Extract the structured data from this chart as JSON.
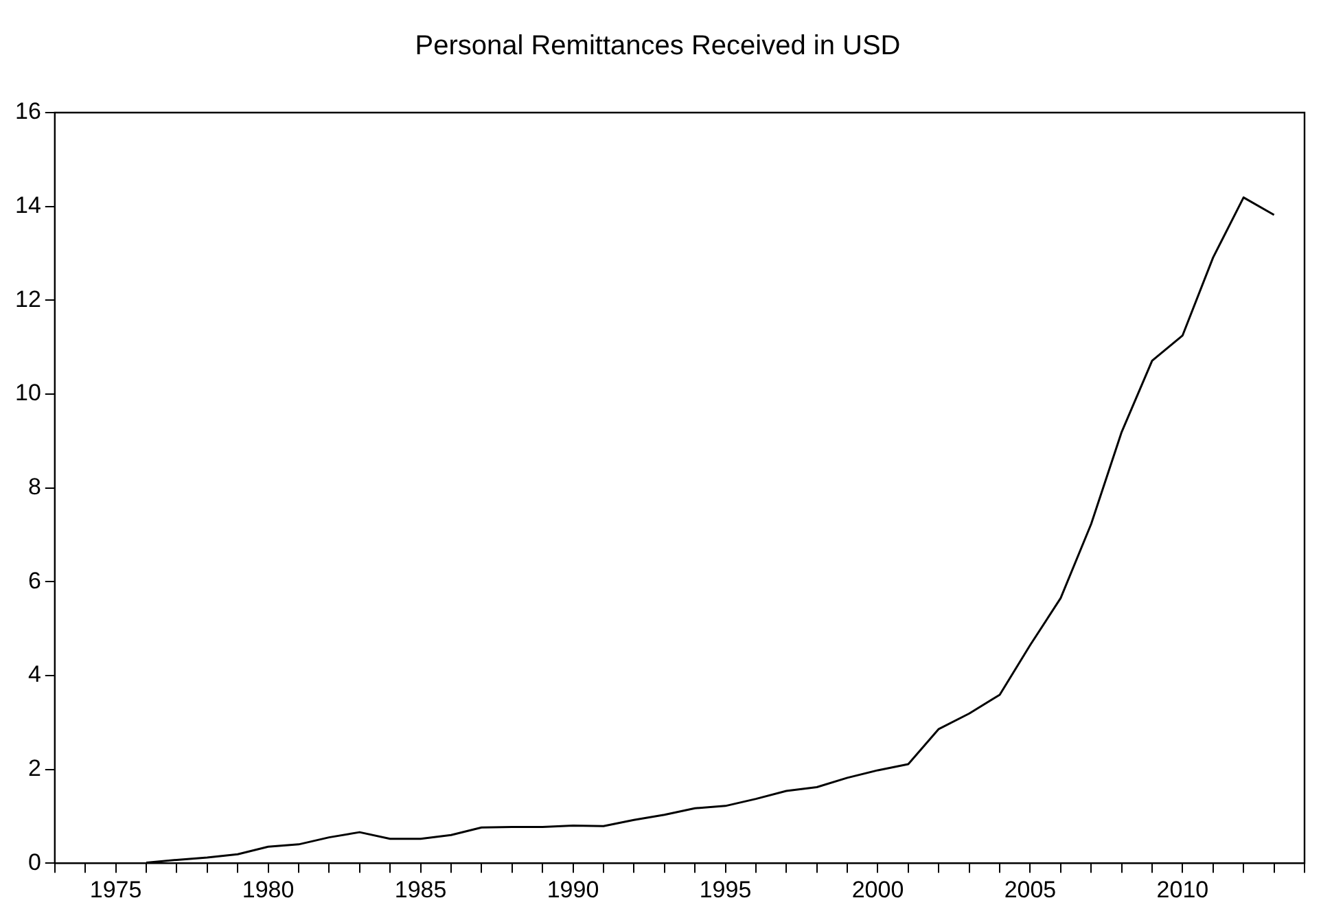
{
  "chart_data": {
    "type": "line",
    "title": "Personal Remittances Received in USD",
    "x": [
      1976,
      1977,
      1978,
      1979,
      1980,
      1981,
      1982,
      1983,
      1984,
      1985,
      1986,
      1987,
      1988,
      1989,
      1990,
      1991,
      1992,
      1993,
      1994,
      1995,
      1996,
      1997,
      1998,
      1999,
      2000,
      2001,
      2002,
      2003,
      2004,
      2005,
      2006,
      2007,
      2008,
      2009,
      2010,
      2011,
      2012,
      2013
    ],
    "series": [
      {
        "color": "#000000",
        "values": [
          0.01,
          0.07,
          0.12,
          0.19,
          0.35,
          0.4,
          0.55,
          0.66,
          0.52,
          0.52,
          0.6,
          0.76,
          0.77,
          0.77,
          0.8,
          0.79,
          0.92,
          1.03,
          1.17,
          1.22,
          1.37,
          1.54,
          1.62,
          1.82,
          1.98,
          2.11,
          2.86,
          3.19,
          3.59,
          4.65,
          5.65,
          7.23,
          9.19,
          10.71,
          11.25,
          12.91,
          14.19,
          13.82
        ]
      }
    ],
    "xlim": [
      1973,
      2014
    ],
    "xticks": [
      {
        "value": 1973,
        "label": null
      },
      {
        "value": 1974,
        "label": null
      },
      1975,
      {
        "value": 1976,
        "label": null
      },
      {
        "value": 1977,
        "label": null
      },
      {
        "value": 1978,
        "label": null
      },
      {
        "value": 1979,
        "label": null
      },
      1980,
      {
        "value": 1981,
        "label": null
      },
      {
        "value": 1982,
        "label": null
      },
      {
        "value": 1983,
        "label": null
      },
      {
        "value": 1984,
        "label": null
      },
      1985,
      {
        "value": 1986,
        "label": null
      },
      {
        "value": 1987,
        "label": null
      },
      {
        "value": 1988,
        "label": null
      },
      {
        "value": 1989,
        "label": null
      },
      1990,
      {
        "value": 1991,
        "label": null
      },
      {
        "value": 1992,
        "label": null
      },
      {
        "value": 1993,
        "label": null
      },
      {
        "value": 1994,
        "label": null
      },
      1995,
      {
        "value": 1996,
        "label": null
      },
      {
        "value": 1997,
        "label": null
      },
      {
        "value": 1998,
        "label": null
      },
      {
        "value": 1999,
        "label": null
      },
      2000,
      {
        "value": 2001,
        "label": null
      },
      {
        "value": 2002,
        "label": null
      },
      {
        "value": 2003,
        "label": null
      },
      {
        "value": 2004,
        "label": null
      },
      2005,
      {
        "value": 2006,
        "label": null
      },
      {
        "value": 2007,
        "label": null
      },
      {
        "value": 2008,
        "label": null
      },
      {
        "value": 2009,
        "label": null
      },
      2010,
      {
        "value": 2011,
        "label": null
      },
      {
        "value": 2012,
        "label": null
      },
      {
        "value": 2013,
        "label": null
      },
      {
        "value": 2014,
        "label": null
      }
    ],
    "ylim": [
      0,
      16
    ],
    "yticks": [
      0,
      2,
      4,
      6,
      8,
      10,
      12,
      14,
      16
    ],
    "grid": false,
    "legend": false,
    "marker": "none",
    "line_style": "solid"
  }
}
